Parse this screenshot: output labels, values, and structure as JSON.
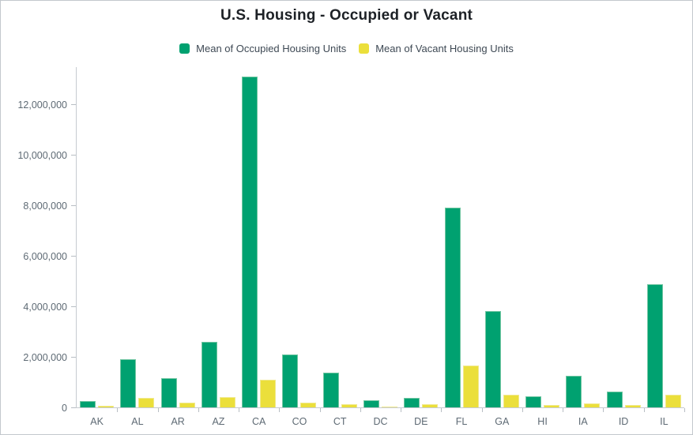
{
  "chart_data": {
    "type": "bar",
    "title": "U.S. Housing - Occupied or Vacant",
    "xlabel": "",
    "ylabel": "",
    "grid": false,
    "legend_position": "top",
    "ylim": [
      0,
      13500000
    ],
    "categories": [
      "AK",
      "AL",
      "AR",
      "AZ",
      "CA",
      "CO",
      "CT",
      "DC",
      "DE",
      "FL",
      "GA",
      "HI",
      "IA",
      "ID",
      "IL"
    ],
    "series": [
      {
        "name": "Mean of Occupied Housing Units",
        "color": "#00a170",
        "values": [
          250000,
          1900000,
          1160000,
          2600000,
          13100000,
          2100000,
          1380000,
          290000,
          390000,
          7900000,
          3800000,
          450000,
          1250000,
          620000,
          4870000
        ]
      },
      {
        "name": "Mean of Vacant Housing Units",
        "color": "#ebdf3b",
        "values": [
          60000,
          380000,
          200000,
          400000,
          1100000,
          200000,
          130000,
          30000,
          130000,
          1650000,
          490000,
          80000,
          150000,
          100000,
          490000
        ]
      }
    ],
    "y_ticks": [
      0,
      2000000,
      4000000,
      6000000,
      8000000,
      10000000,
      12000000
    ],
    "y_tick_labels": [
      "0",
      "2,000,000",
      "4,000,000",
      "6,000,000",
      "8,000,000",
      "10,000,000",
      "12,000,000"
    ]
  },
  "colors": {
    "occupied": "#00a170",
    "vacant": "#ebdf3b",
    "axis_line": "#c6cbd0",
    "tick": "#b8bec4",
    "axis_text": "#5e6a74",
    "title_text": "#1d2126",
    "legend_text": "#3e4954",
    "frame_border": "#c3c8cd"
  }
}
